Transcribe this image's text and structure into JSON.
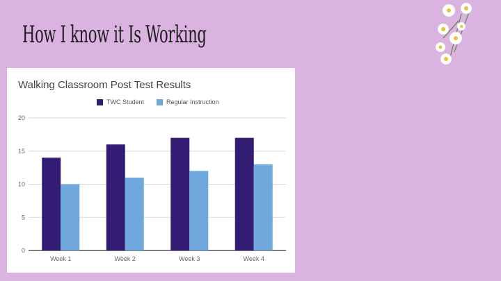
{
  "slide": {
    "title": "How I know it Is Working",
    "background_color": "#dab3e0"
  },
  "decoration": {
    "icon": "daisy-bouquet-icon"
  },
  "chart_data": {
    "type": "bar",
    "title": "Walking Classroom Post Test Results",
    "categories": [
      "Week 1",
      "Week 2",
      "Week 3",
      "Week 4"
    ],
    "series": [
      {
        "name": "TWC Student",
        "color": "#331c73",
        "values": [
          14,
          16,
          17,
          17
        ]
      },
      {
        "name": "Regular Instruction",
        "color": "#6fa8dc",
        "values": [
          10,
          11,
          12,
          13
        ]
      }
    ],
    "y_ticks": [
      "0",
      "5",
      "10",
      "15",
      "20"
    ],
    "ylim": [
      0,
      20
    ],
    "grid": true,
    "legend_position": "top"
  }
}
